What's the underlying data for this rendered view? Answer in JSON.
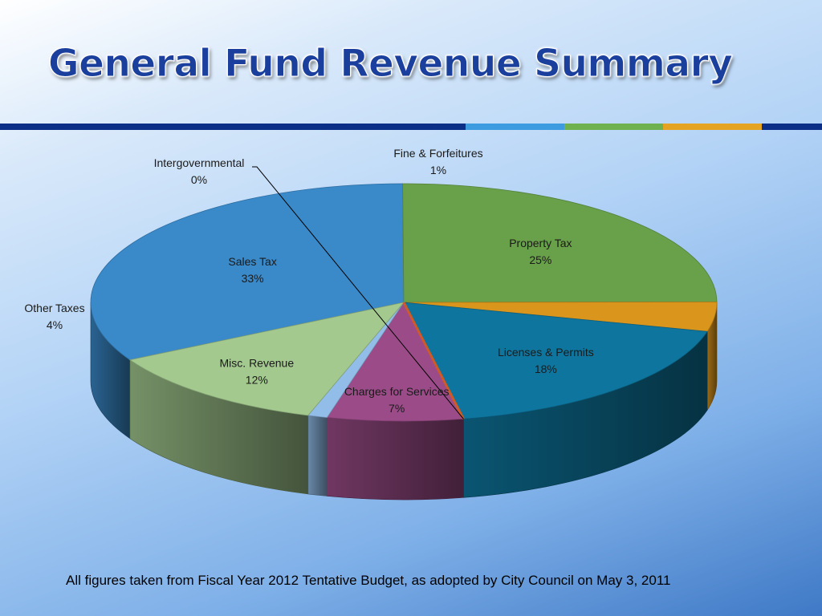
{
  "slide": {
    "title": "General Fund Revenue Summary",
    "footnote": "All figures taken from Fiscal Year 2012 Tentative Budget, as adopted by City Council on May 3, 2011",
    "divider_colors": [
      "#0b2f86",
      "#3d9be0",
      "#6fb04f",
      "#e4a321",
      "#0b2f86"
    ]
  },
  "chart_data": {
    "type": "pie",
    "style": "3d",
    "title": "",
    "categories": [
      "Sales Tax",
      "Property Tax",
      "Other Taxes",
      "Licenses & Permits",
      "Intergovernmental",
      "Charges for Services",
      "Fine & Forfeitures",
      "Misc. Revenue"
    ],
    "values": [
      33,
      25,
      4,
      18,
      0,
      7,
      1,
      12
    ],
    "labels": [
      "33%",
      "25%",
      "4%",
      "18%",
      "0%",
      "7%",
      "1%",
      "12%"
    ],
    "colors": [
      "#3a89c9",
      "#69a04a",
      "#d9951c",
      "#0e769e",
      "#cf5a23",
      "#9b4c88",
      "#92bde9",
      "#a3c98f"
    ]
  }
}
